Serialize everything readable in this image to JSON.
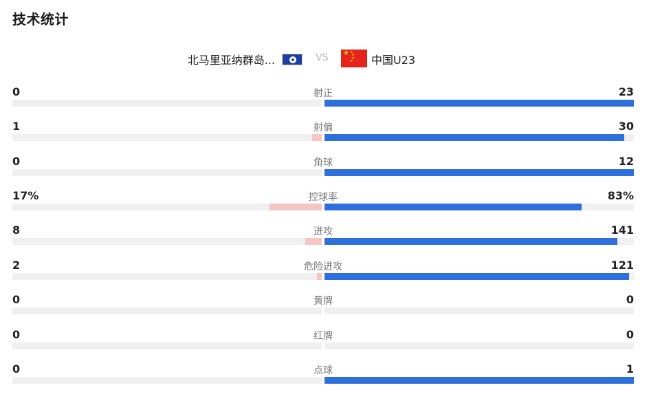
{
  "section_title": "技术统计",
  "match": {
    "home_team": "北马里亚纳群岛...",
    "vs_label": "VS",
    "away_team": "中国U23",
    "home_flag_icon": "northern-mariana-islands-flag-icon",
    "away_flag_icon": "china-flag-icon"
  },
  "colors": {
    "home_bar": "#f5c5c3",
    "away_bar": "#2f6fdc",
    "track": "#f0f0f0"
  },
  "stats": [
    {
      "label": "射正",
      "home": "0",
      "away": "23",
      "home_share": 0.0,
      "away_share": 1.0
    },
    {
      "label": "射偏",
      "home": "1",
      "away": "30",
      "home_share": 0.032,
      "away_share": 0.968
    },
    {
      "label": "角球",
      "home": "0",
      "away": "12",
      "home_share": 0.0,
      "away_share": 1.0
    },
    {
      "label": "控球率",
      "home": "17%",
      "away": "83%",
      "home_share": 0.17,
      "away_share": 0.83
    },
    {
      "label": "进攻",
      "home": "8",
      "away": "141",
      "home_share": 0.054,
      "away_share": 0.946
    },
    {
      "label": "危险进攻",
      "home": "2",
      "away": "121",
      "home_share": 0.016,
      "away_share": 0.984
    },
    {
      "label": "黄牌",
      "home": "0",
      "away": "0",
      "home_share": 0.0,
      "away_share": 0.0
    },
    {
      "label": "红牌",
      "home": "0",
      "away": "0",
      "home_share": 0.0,
      "away_share": 0.0
    },
    {
      "label": "点球",
      "home": "0",
      "away": "1",
      "home_share": 0.0,
      "away_share": 1.0
    }
  ]
}
